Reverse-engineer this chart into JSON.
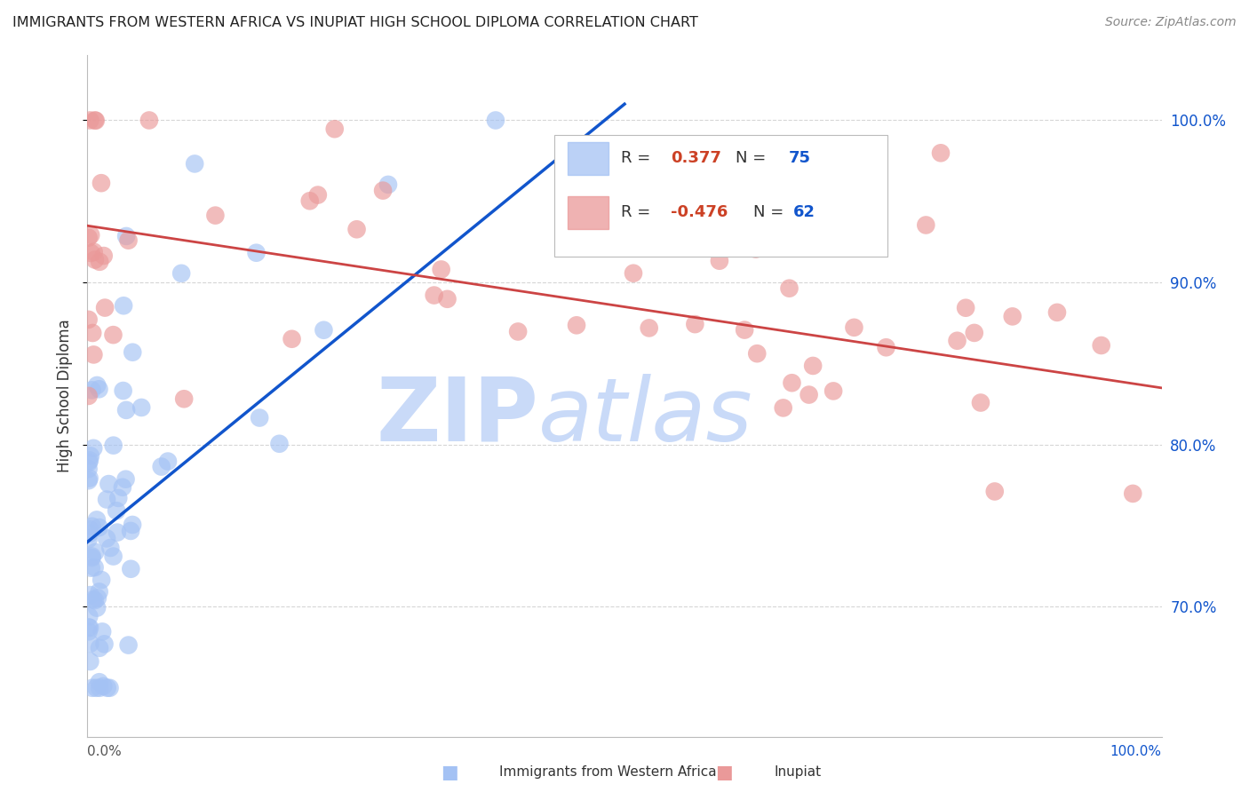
{
  "title": "IMMIGRANTS FROM WESTERN AFRICA VS INUPIAT HIGH SCHOOL DIPLOMA CORRELATION CHART",
  "source": "Source: ZipAtlas.com",
  "ylabel": "High School Diploma",
  "legend_blue_r_val": "0.377",
  "legend_blue_n_val": "75",
  "legend_pink_r_val": "-0.476",
  "legend_pink_n_val": "62",
  "legend_label_blue": "Immigrants from Western Africa",
  "legend_label_pink": "Inupiat",
  "blue_color": "#a4c2f4",
  "pink_color": "#ea9999",
  "blue_line_color": "#1155cc",
  "pink_line_color": "#cc4444",
  "r_val_color": "#cc4125",
  "n_val_color": "#1155cc",
  "right_tick_color": "#1155cc",
  "watermark_color": "#c9daf8",
  "xlim": [
    0.0,
    1.0
  ],
  "ylim": [
    0.62,
    1.04
  ],
  "yticks": [
    0.7,
    0.8,
    0.9,
    1.0
  ],
  "ytick_labels": [
    "70.0%",
    "80.0%",
    "90.0%",
    "100.0%"
  ],
  "blue_line_x0": 0.0,
  "blue_line_x1": 0.5,
  "blue_line_y0": 0.74,
  "blue_line_y1": 1.01,
  "pink_line_x0": 0.0,
  "pink_line_x1": 1.0,
  "pink_line_y0": 0.935,
  "pink_line_y1": 0.835
}
